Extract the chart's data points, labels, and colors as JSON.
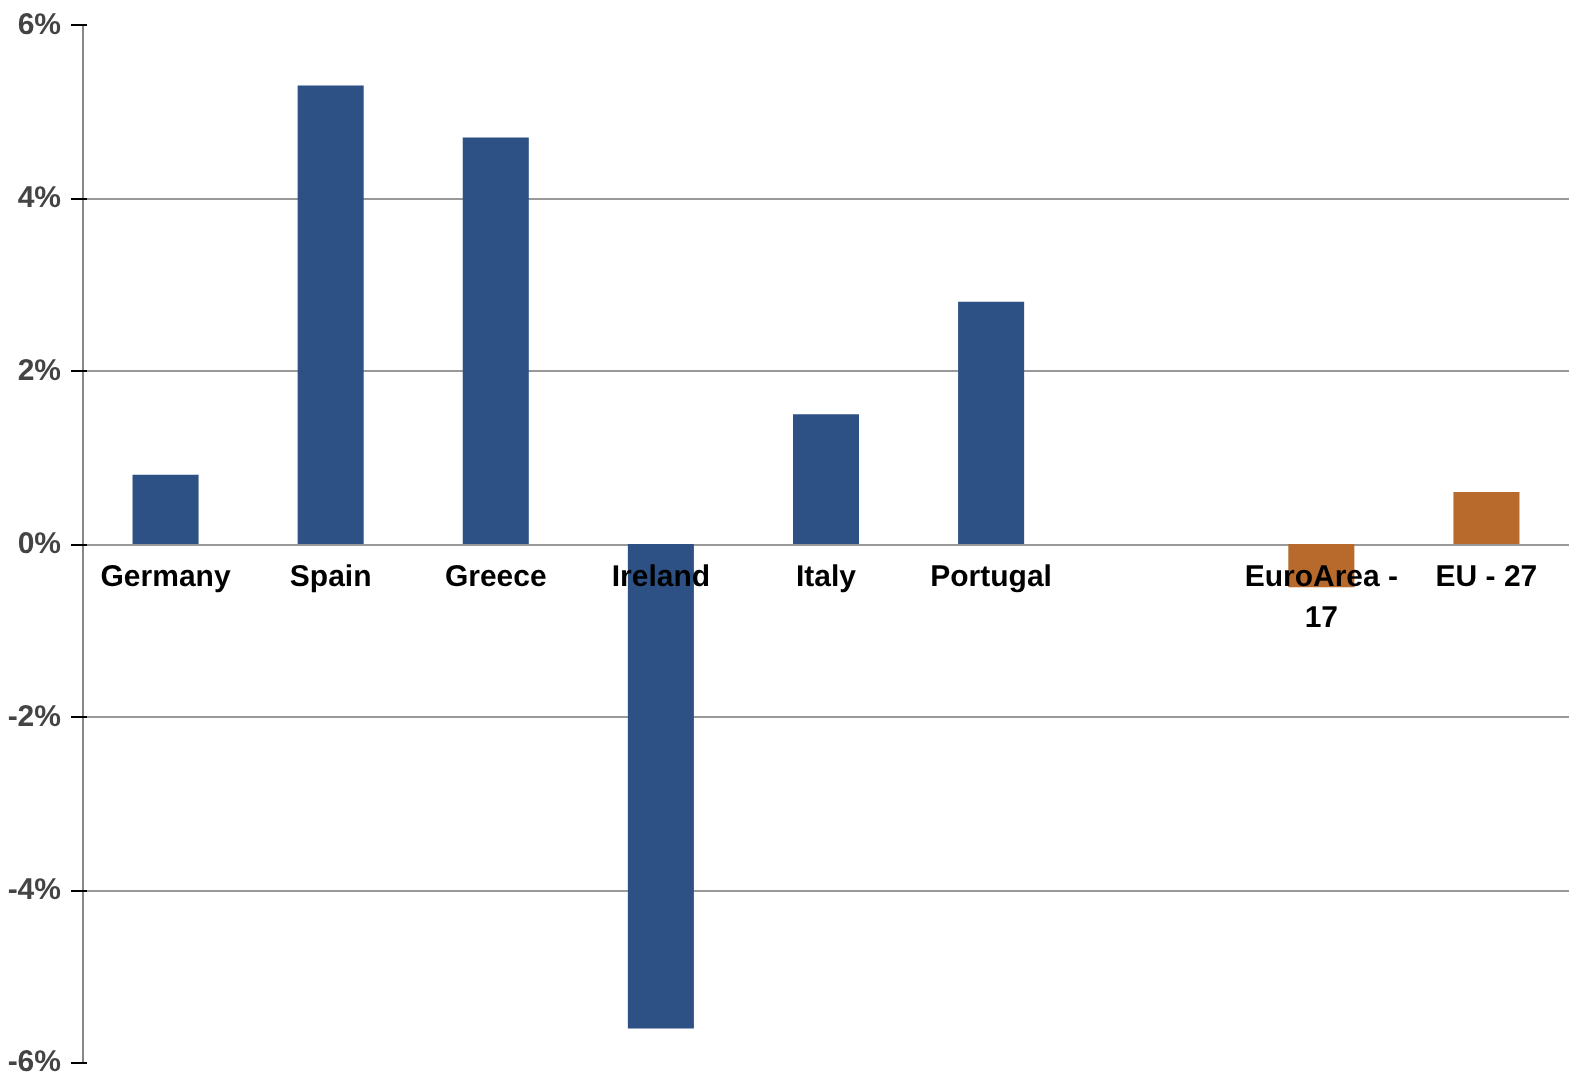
{
  "chart_data": {
    "type": "bar",
    "categories": [
      "Germany",
      "Spain",
      "Greece",
      "Ireland",
      "Italy",
      "Portugal",
      null,
      "EuroArea - 17",
      "EU - 27"
    ],
    "values": [
      0.8,
      5.3,
      4.7,
      -5.6,
      1.5,
      2.8,
      null,
      -0.5,
      0.6
    ],
    "colors": [
      "#2e5185",
      "#2e5185",
      "#2e5185",
      "#2e5185",
      "#2e5185",
      "#2e5185",
      "#2e5185",
      "#b86a2c",
      "#b86a2c"
    ],
    "ylim": [
      -6,
      6
    ],
    "yticks": [
      {
        "value": -6,
        "label": "-6%"
      },
      {
        "value": -4,
        "label": "-4%"
      },
      {
        "value": -2,
        "label": "-2%"
      },
      {
        "value": 0,
        "label": "0%"
      },
      {
        "value": 2,
        "label": "2%"
      },
      {
        "value": 4,
        "label": "4%"
      },
      {
        "value": 6,
        "label": "6%"
      }
    ],
    "grid": "y"
  }
}
